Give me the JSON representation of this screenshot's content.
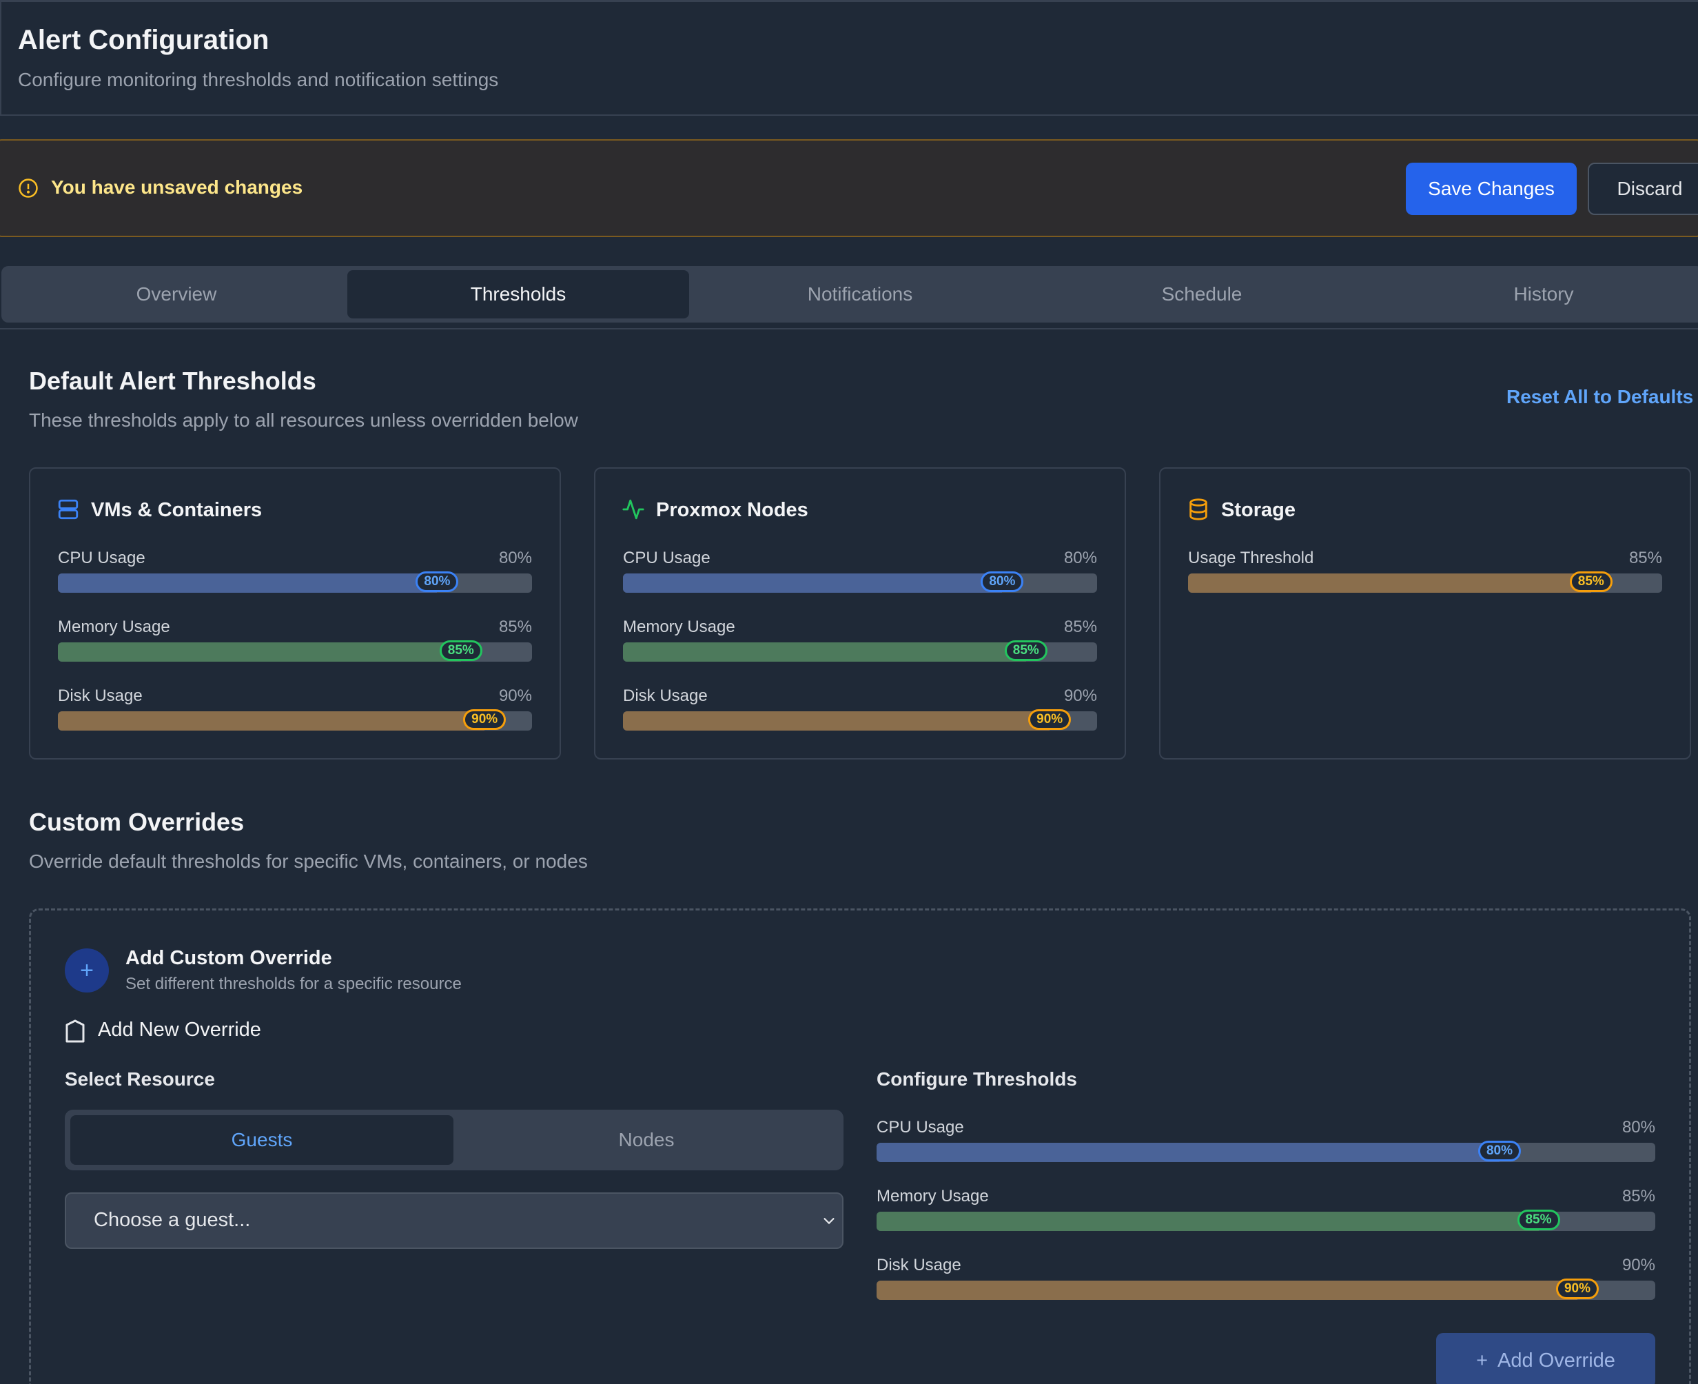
{
  "header": {
    "title": "Alert Configuration",
    "subtitle": "Configure monitoring thresholds and notification settings"
  },
  "banner": {
    "message": "You have unsaved changes",
    "save_label": "Save Changes",
    "discard_label": "Discard"
  },
  "tabs": [
    {
      "label": "Overview",
      "active": false
    },
    {
      "label": "Thresholds",
      "active": true
    },
    {
      "label": "Notifications",
      "active": false
    },
    {
      "label": "Schedule",
      "active": false
    },
    {
      "label": "History",
      "active": false
    }
  ],
  "defaults": {
    "title": "Default Alert Thresholds",
    "subtitle": "These thresholds apply to all resources unless overridden below",
    "reset_label": "Reset All to Defaults",
    "cards": [
      {
        "title": "VMs & Containers",
        "icon": "server-icon",
        "rows": [
          {
            "label": "CPU Usage",
            "value": "80%",
            "percent": 80,
            "color": "blue"
          },
          {
            "label": "Memory Usage",
            "value": "85%",
            "percent": 85,
            "color": "green"
          },
          {
            "label": "Disk Usage",
            "value": "90%",
            "percent": 90,
            "color": "amber"
          }
        ]
      },
      {
        "title": "Proxmox Nodes",
        "icon": "activity-icon",
        "rows": [
          {
            "label": "CPU Usage",
            "value": "80%",
            "percent": 80,
            "color": "blue"
          },
          {
            "label": "Memory Usage",
            "value": "85%",
            "percent": 85,
            "color": "green"
          },
          {
            "label": "Disk Usage",
            "value": "90%",
            "percent": 90,
            "color": "amber"
          }
        ]
      },
      {
        "title": "Storage",
        "icon": "database-icon",
        "rows": [
          {
            "label": "Usage Threshold",
            "value": "85%",
            "percent": 85,
            "color": "amber"
          }
        ]
      }
    ]
  },
  "overrides": {
    "title": "Custom Overrides",
    "subtitle": "Override default thresholds for specific VMs, containers, or nodes",
    "add_title": "Add Custom Override",
    "add_subtitle": "Set different thresholds for a specific resource",
    "add_new_label": "Add New Override",
    "select_resource_label": "Select Resource",
    "segments": [
      {
        "label": "Guests",
        "active": true
      },
      {
        "label": "Nodes",
        "active": false
      }
    ],
    "select_placeholder": "Choose a guest...",
    "configure_label": "Configure Thresholds",
    "rows": [
      {
        "label": "CPU Usage",
        "value": "80%",
        "percent": 80,
        "color": "blue"
      },
      {
        "label": "Memory Usage",
        "value": "85%",
        "percent": 85,
        "color": "green"
      },
      {
        "label": "Disk Usage",
        "value": "90%",
        "percent": 90,
        "color": "amber"
      }
    ],
    "add_button_label": "Add Override"
  },
  "colors": {
    "background": "#1f2937",
    "accent": "#2563eb",
    "blue": "#3b82f6",
    "green": "#22c55e",
    "amber": "#f59e0b",
    "warning_text": "#fde68a"
  }
}
